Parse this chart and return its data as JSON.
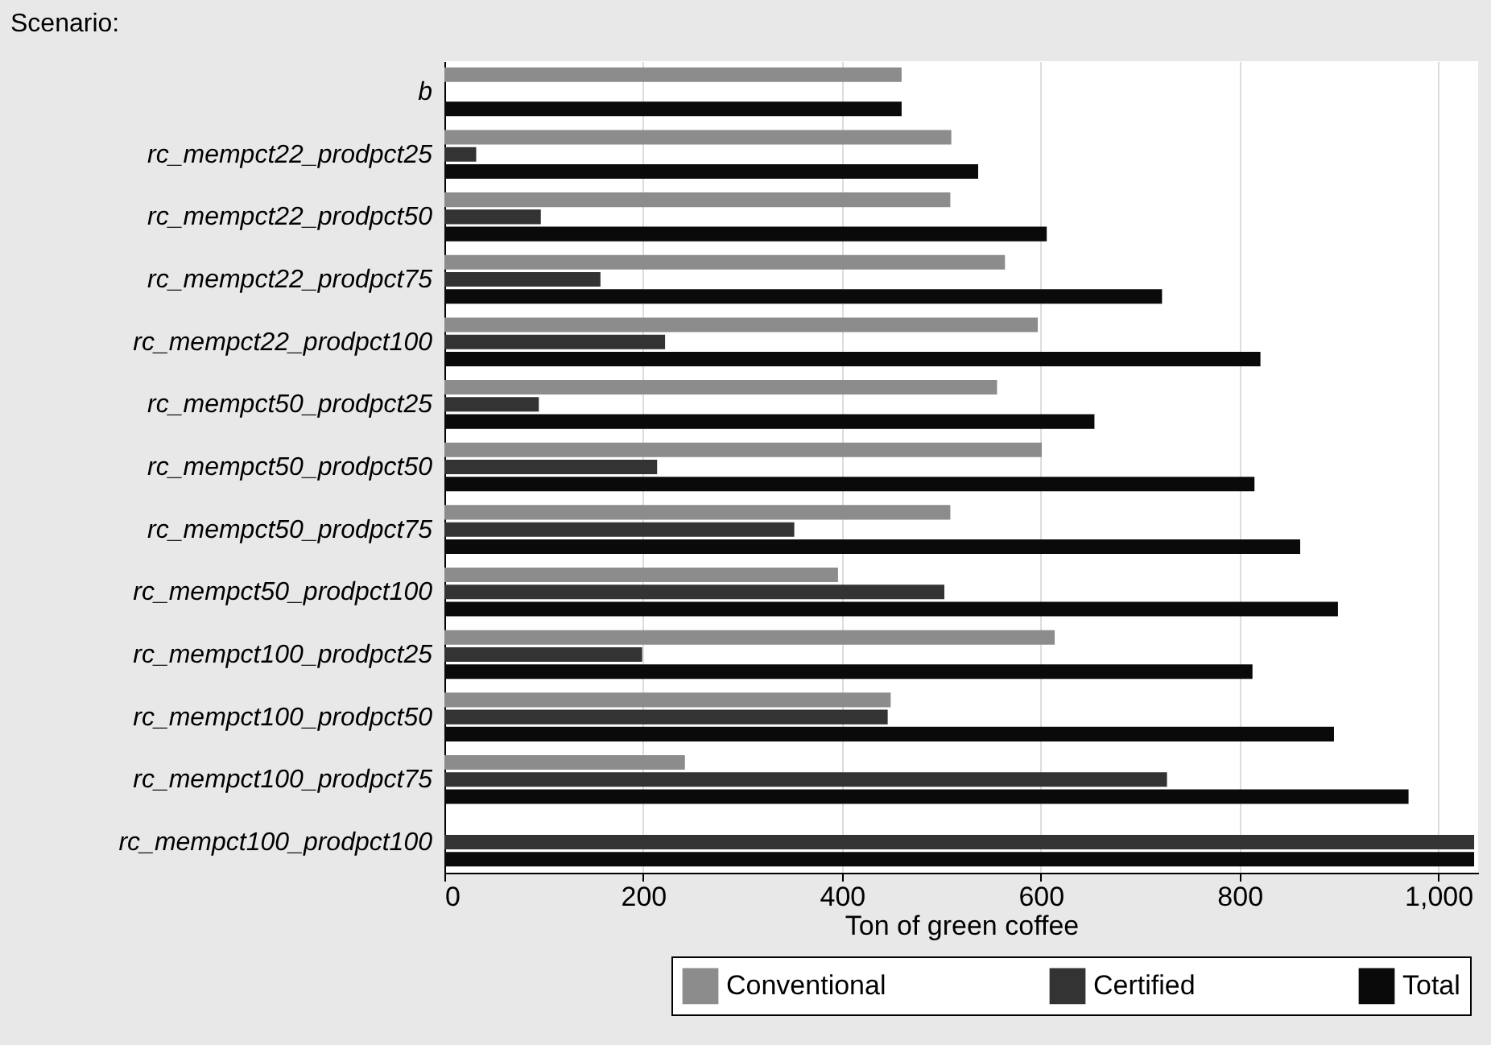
{
  "chart_data": {
    "type": "bar",
    "orientation": "horizontal",
    "ylabel": "Scenario:",
    "xlabel": "Ton of green coffee",
    "categories": [
      "b",
      "rc_mempct22_prodpct25",
      "rc_mempct22_prodpct50",
      "rc_mempct22_prodpct75",
      "rc_mempct22_prodpct100",
      "rc_mempct50_prodpct25",
      "rc_mempct50_prodpct50",
      "rc_mempct50_prodpct75",
      "rc_mempct50_prodpct100",
      "rc_mempct100_prodpct25",
      "rc_mempct100_prodpct50",
      "rc_mempct100_prodpct75",
      "rc_mempct100_prodpct100"
    ],
    "series": [
      {
        "name": "Conventional",
        "color": "#8c8c8c",
        "values": [
          460,
          510,
          509,
          564,
          597,
          556,
          601,
          509,
          396,
          614,
          449,
          242,
          0
        ]
      },
      {
        "name": "Certified",
        "color": "#333333",
        "values": [
          0,
          32,
          97,
          157,
          222,
          95,
          214,
          352,
          503,
          199,
          446,
          727,
          1036
        ]
      },
      {
        "name": "Total",
        "color": "#0a0a0a",
        "values": [
          460,
          537,
          606,
          722,
          821,
          654,
          815,
          861,
          899,
          813,
          895,
          970,
          1036
        ]
      }
    ],
    "xlim": [
      0,
      1040
    ],
    "xticks": [
      0,
      200,
      400,
      600,
      800,
      {
        "value": 1000,
        "label": "1,000"
      }
    ],
    "grid": "x",
    "legend": "bottom right"
  }
}
